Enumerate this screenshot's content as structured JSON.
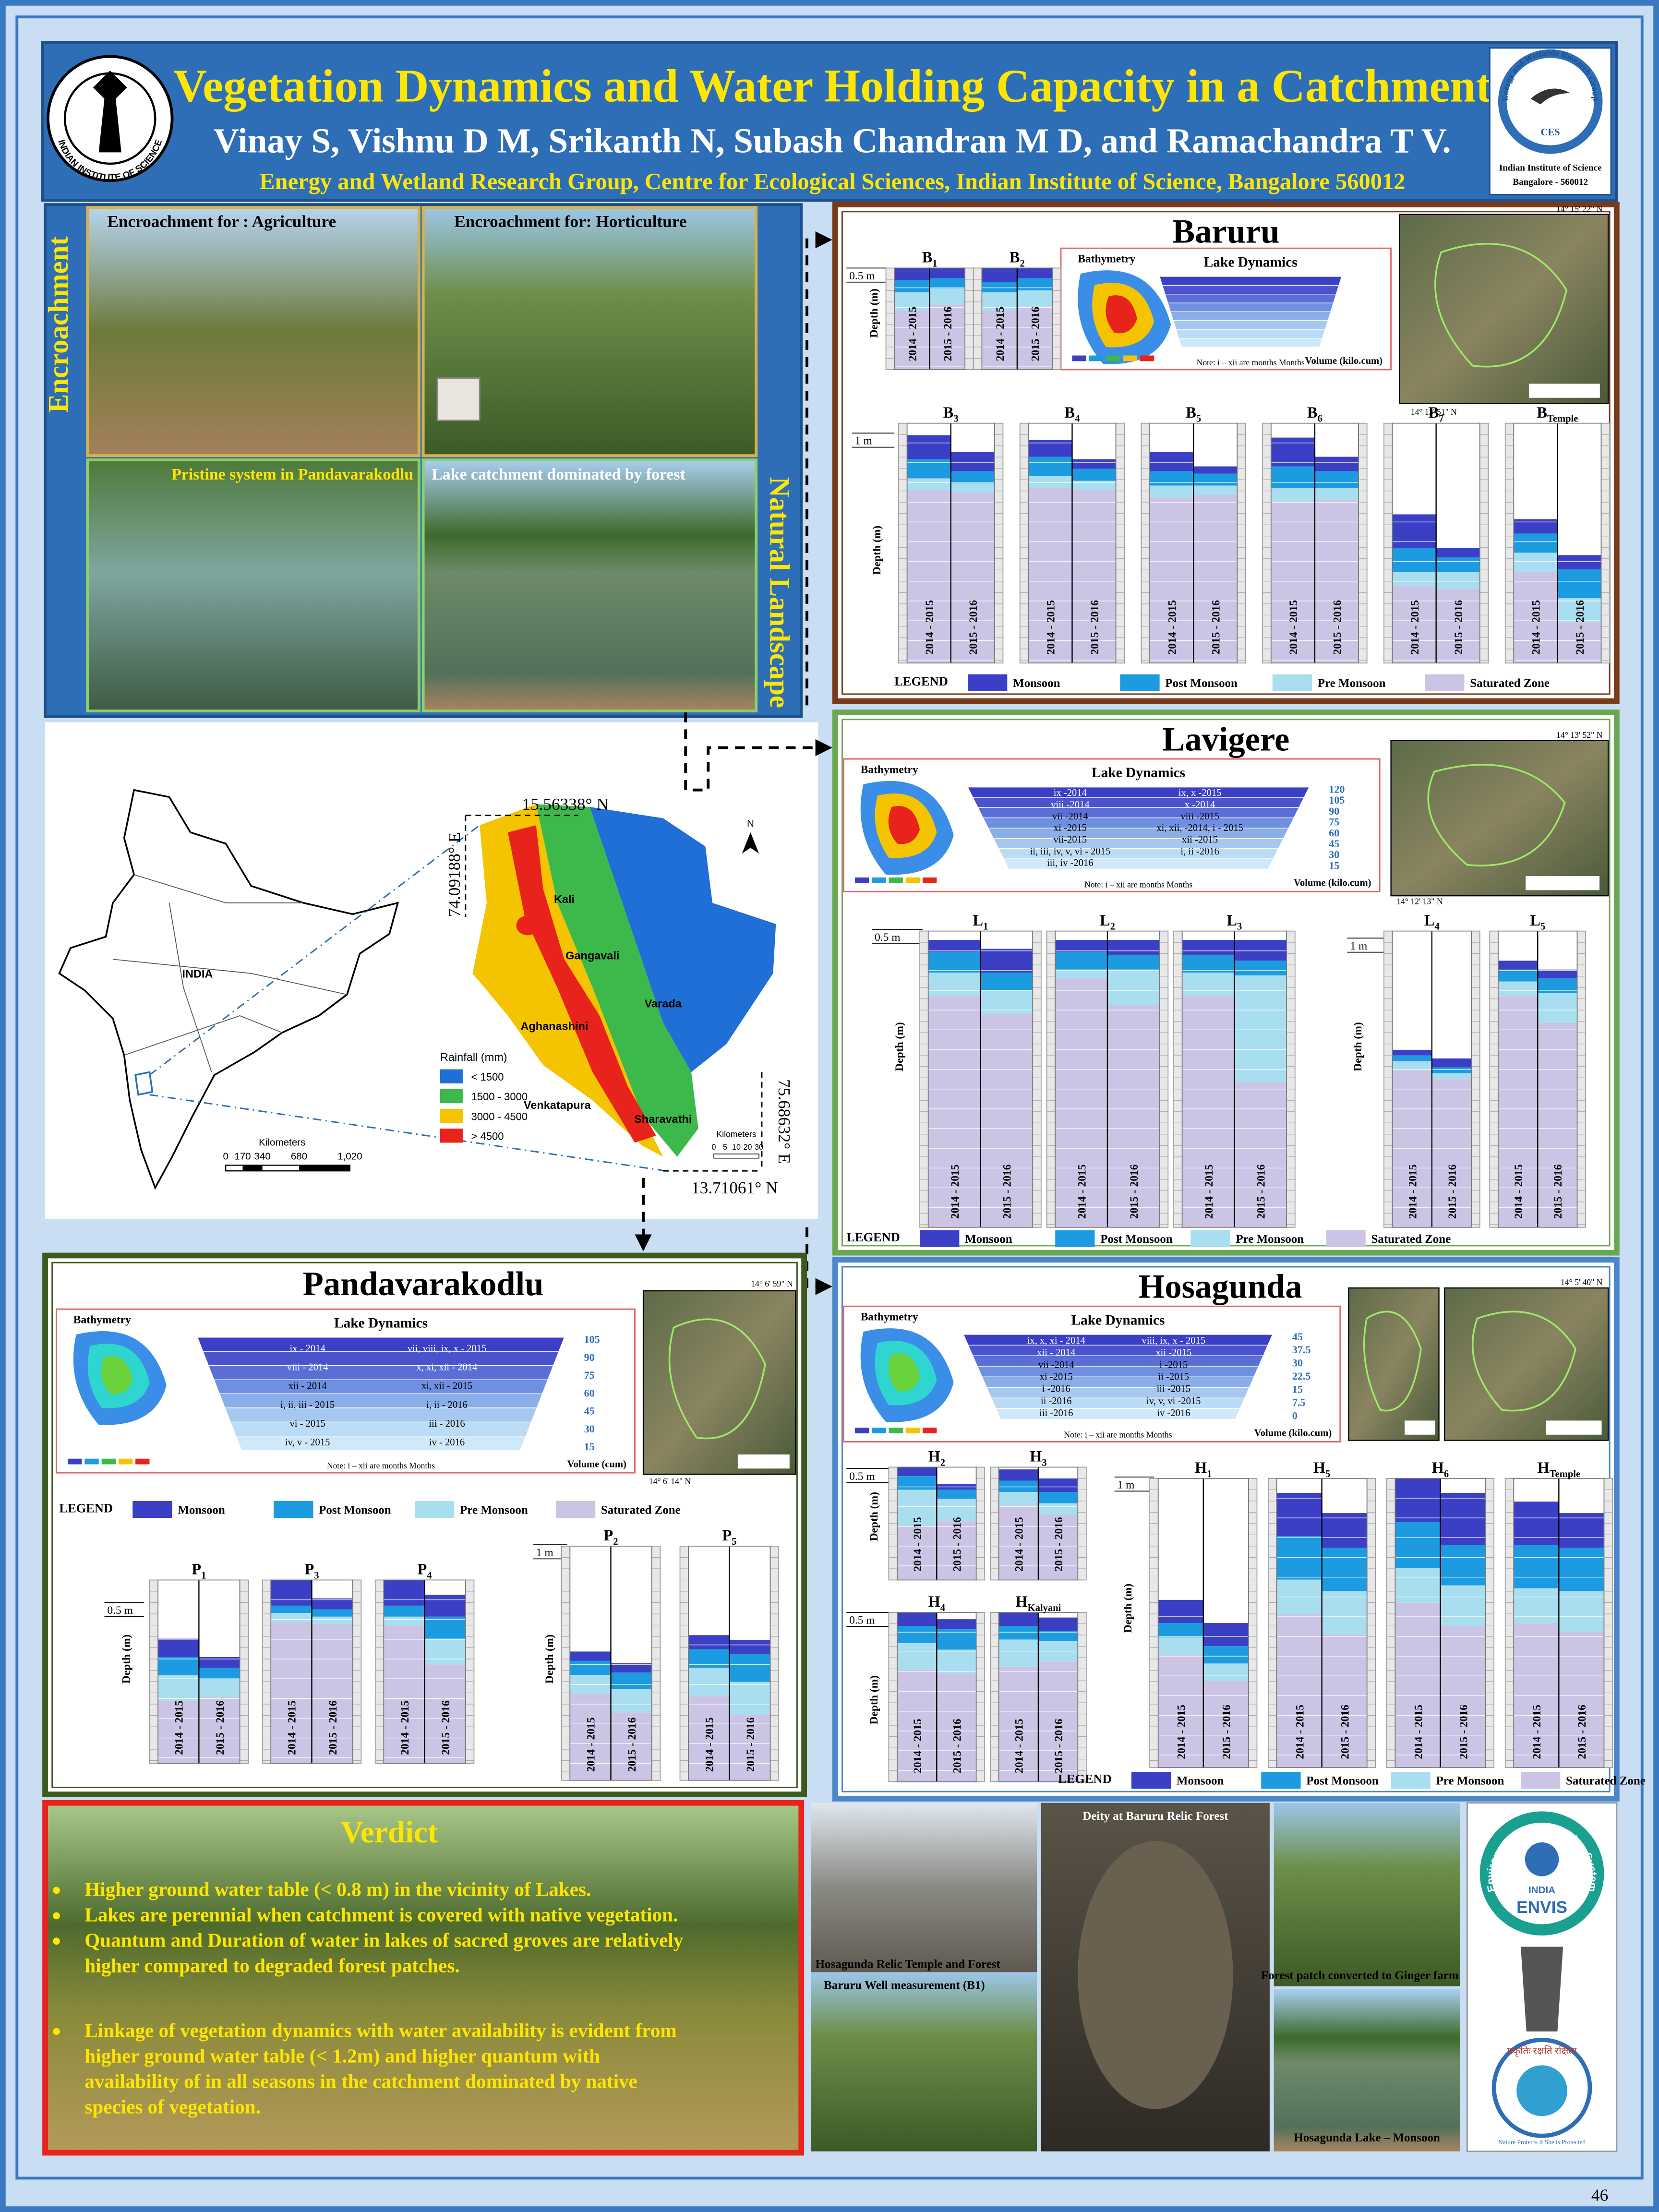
{
  "header": {
    "title": "Vegetation Dynamics and Water Holding Capacity in a Catchment",
    "authors": "Vinay S, Vishnu D M, Srikanth N, Subash Chandran M D, and Ramachandra T V.",
    "affiliation": "Energy and Wetland Research Group, Centre for Ecological Sciences, Indian Institute of Science, Bangalore 560012",
    "left_logo": "INDIAN INSTITUTE OF SCIENCE",
    "right_logo_arc": "Energy and Wetlands Research Group",
    "right_logo_mark": "CES",
    "right_logo_lines": [
      "Indian Institute of Science",
      "Bangalore - 560012"
    ]
  },
  "landscape": {
    "encroachment_label": "Encroachment",
    "natural_label": "Natural Landscape",
    "photos": [
      "Encroachment for : Agriculture",
      "Encroachment for: Horticulture",
      "Pristine system in Pandavarakodlu",
      "Lake catchment dominated by forest"
    ]
  },
  "map": {
    "india": "INDIA",
    "north_lat": "15.56338° N",
    "south_lat": "13.71061° N",
    "west_lon": "74.09188° E",
    "east_lon": "75.68632° E",
    "rivers": [
      "Kali",
      "Gangavali",
      "Aghanashini",
      "Varada",
      "Venkatapura",
      "Sharavathi"
    ],
    "rainfall_title": "Rainfall (mm)",
    "rainfall_classes": [
      "< 1500",
      "1500 - 3000",
      "3000 - 4500",
      "> 4500"
    ],
    "north": "N",
    "scale_title": "Kilometers",
    "india_scale": [
      "0",
      "170",
      "340",
      "680",
      "1,020"
    ],
    "local_scale": [
      "0",
      "5",
      "10",
      "20",
      "30"
    ]
  },
  "common": {
    "depth_label": "Depth (m)",
    "years": [
      "2014 - 2015",
      "2015 - 2016"
    ],
    "legend": {
      "title": "LEGEND",
      "items": [
        "Monsoon",
        "Post Monsoon",
        "Pre Monsoon",
        "Saturated Zone"
      ]
    },
    "bathymetry": "Bathymetry",
    "lake_dynamics": "Lake Dynamics",
    "note": "Note: i – xii are months Months"
  },
  "baruru": {
    "title": "Baruru",
    "scales": [
      "0.5 m",
      "1 m"
    ],
    "volume_label": "Volume (kilo.cum)",
    "coords": [
      "14° 15' 22\" N",
      "14° 13' 51\" N"
    ],
    "wells": [
      {
        "name": "B",
        "sub": "1"
      },
      {
        "name": "B",
        "sub": "2"
      },
      {
        "name": "B",
        "sub": "3"
      },
      {
        "name": "B",
        "sub": "4"
      },
      {
        "name": "B",
        "sub": "5"
      },
      {
        "name": "B",
        "sub": "6"
      },
      {
        "name": "B",
        "sub": "7"
      },
      {
        "name": "B",
        "sub": "Temple"
      }
    ]
  },
  "lavigere": {
    "title": "Lavigere",
    "scales": [
      "0.5 m",
      "1 m"
    ],
    "volume_label": "Volume (kilo.cum)",
    "coords": [
      "14° 13' 52\" N",
      "14° 12' 13\" N"
    ],
    "lake_labels": [
      "ix -2014",
      "ix, x -2015",
      "viii -2014",
      "x -2014",
      "vii -2014",
      "viii -2015",
      "xi -2015",
      "xi, xii, -2014, i - 2015",
      "vii-2015",
      "xii -2015",
      "ii, iii, iv, v, vi - 2015",
      "i, ii -2016",
      "iii, iv -2016"
    ],
    "volume_ticks": [
      "120",
      "105",
      "90",
      "75",
      "60",
      "45",
      "30",
      "15"
    ],
    "wells": [
      {
        "name": "L",
        "sub": "1"
      },
      {
        "name": "L",
        "sub": "2"
      },
      {
        "name": "L",
        "sub": "3"
      },
      {
        "name": "L",
        "sub": "4"
      },
      {
        "name": "L",
        "sub": "5"
      }
    ]
  },
  "pandavarakodlu": {
    "title": "Pandavarakodlu",
    "scales": [
      "0.5 m",
      "1 m"
    ],
    "volume_label": "Volume (cum)",
    "coords": [
      "14° 6' 59\" N",
      "14° 6' 14\" N"
    ],
    "lake_labels": [
      "ix - 2014",
      "vii, viii, ix, x - 2015",
      "viii - 2014",
      "x, xi, xii - 2014",
      "xii - 2014",
      "xi, xii - 2015",
      "i, ii, iii - 2015",
      "i, ii - 2016",
      "vi - 2015",
      "iii - 2016",
      "iv, v - 2015",
      "iv - 2016"
    ],
    "volume_ticks": [
      "105",
      "90",
      "75",
      "60",
      "45",
      "30",
      "15"
    ],
    "wells": [
      {
        "name": "P",
        "sub": "1"
      },
      {
        "name": "P",
        "sub": "3"
      },
      {
        "name": "P",
        "sub": "4"
      },
      {
        "name": "P",
        "sub": "2"
      },
      {
        "name": "P",
        "sub": "5"
      }
    ]
  },
  "hosagunda": {
    "title": "Hosagunda",
    "scales": [
      "0.5 m",
      "1 m"
    ],
    "volume_label": "Volume (kilo.cum)",
    "coords": [
      "14° 5' 40\" N"
    ],
    "lake_labels": [
      "ix, x, xi - 2014",
      "viii, ix, x - 2015",
      "xii - 2014",
      "xii -2015",
      "vii -2014",
      "i -2015",
      "xi -2015",
      "ii -2015",
      "i -2016",
      "iii -2015",
      "ii -2016",
      "iv, v, vi -2015",
      "iii -2016",
      "iv -2016"
    ],
    "volume_ticks": [
      "45",
      "37.5",
      "30",
      "22.5",
      "15",
      "7.5",
      "0"
    ],
    "wells": [
      {
        "name": "H",
        "sub": "2"
      },
      {
        "name": "H",
        "sub": "3"
      },
      {
        "name": "H",
        "sub": "4"
      },
      {
        "name": "H",
        "sub": "Kalyani"
      },
      {
        "name": "H",
        "sub": "1"
      },
      {
        "name": "H",
        "sub": "5"
      },
      {
        "name": "H",
        "sub": "6"
      },
      {
        "name": "H",
        "sub": "Temple"
      }
    ]
  },
  "verdict": {
    "title": "Verdict",
    "bullets": [
      [
        "Higher ground water table (< 0.8 m) in the vicinity of Lakes."
      ],
      [
        "Lakes are perennial when catchment is covered with native vegetation."
      ],
      [
        "Quantum and Duration of water in lakes of sacred groves are relatively",
        "higher compared to degraded forest patches."
      ],
      [
        "Linkage of vegetation dynamics with water availability is evident from",
        "higher ground water table (< 1.2m) and higher quantum with",
        "availability of in all seasons in the catchment dominated by native",
        "species of vegetation."
      ]
    ]
  },
  "photos": [
    "Hosagunda Relic Temple and Forest",
    "Baruru Well measurement (B1)",
    "Deity at Baruru Relic Forest",
    "Forest patch converted to Ginger farm",
    "Hosagunda Lake – Monsoon"
  ],
  "envis": {
    "arc": "Environmental Information System",
    "country": "INDIA",
    "name": "ENVIS",
    "motto": "प्रकृतिः रक्षति रक्षिता",
    "motto_en": "Nature Protects if She is Protected"
  },
  "page_number": "46"
}
